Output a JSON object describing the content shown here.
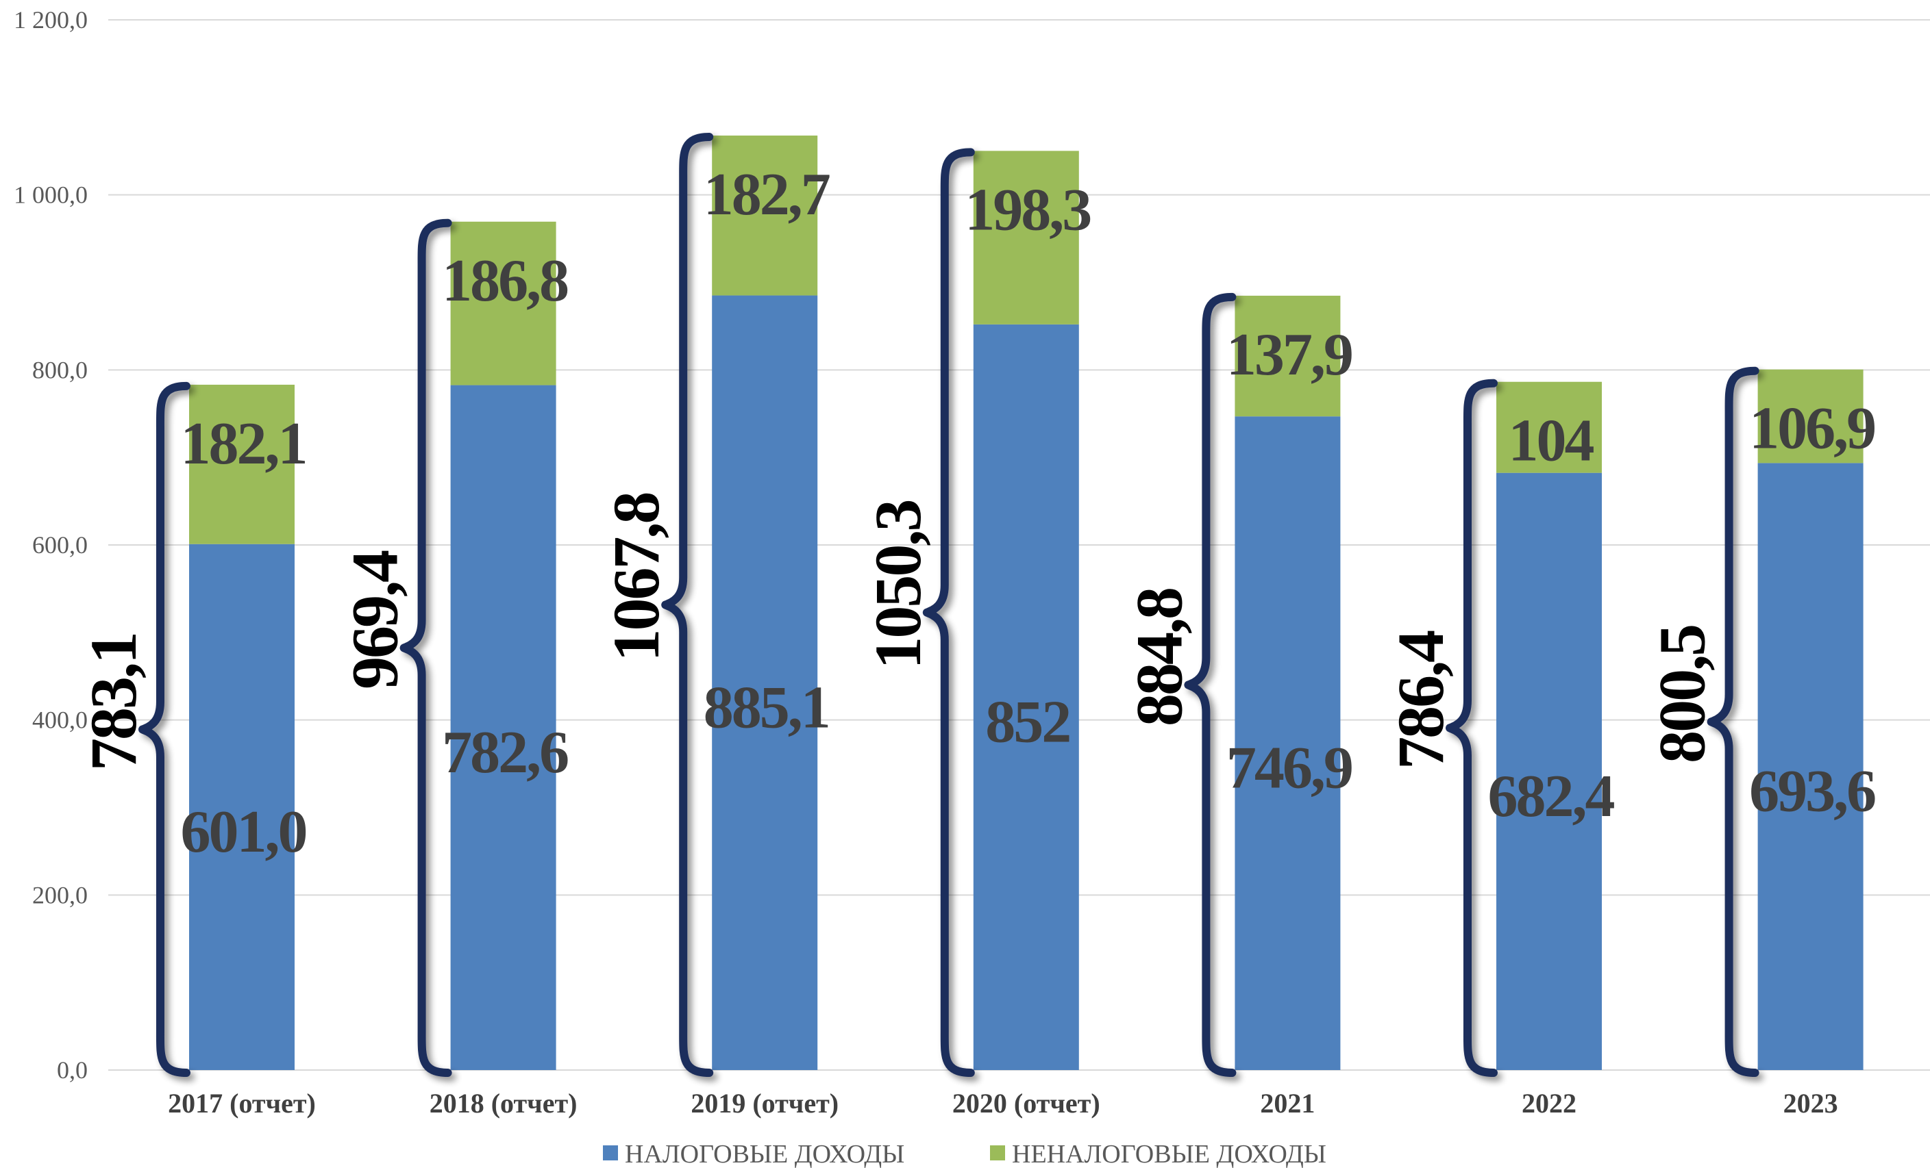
{
  "chart_data": {
    "type": "bar",
    "stacked": true,
    "categories": [
      "2017 (отчет)",
      "2018 (отчет)",
      "2019 (отчет)",
      "2020 (отчет)",
      "2021",
      "2022",
      "2023"
    ],
    "series": [
      {
        "name": "НАЛОГОВЫЕ ДОХОДЫ",
        "color": "#4F81BD",
        "values": [
          601.0,
          782.6,
          885.1,
          852,
          746.9,
          682.4,
          693.6
        ],
        "labels": [
          "601,0",
          "782,6",
          "885,1",
          "852",
          "746,9",
          "682,4",
          "693,6"
        ]
      },
      {
        "name": "НЕНАЛОГОВЫЕ ДОХОДЫ",
        "color": "#9BBB59",
        "values": [
          182.1,
          186.8,
          182.7,
          198.3,
          137.9,
          104,
          106.9
        ],
        "labels": [
          "182,1",
          "186,8",
          "182,7",
          "198,3",
          "137,9",
          "104",
          "106,9"
        ]
      }
    ],
    "totals": [
      783.1,
      969.4,
      1067.8,
      1050.3,
      884.8,
      786.4,
      800.5
    ],
    "total_labels": [
      "783,1",
      "969,4",
      "1067,8",
      "1050,3",
      "884,8",
      "786,4",
      "800,5"
    ],
    "brace_color": "#1F2D5C",
    "ylim": [
      0,
      1200
    ],
    "yticks": [
      0,
      200,
      400,
      600,
      800,
      1000,
      1200
    ],
    "ytick_labels": [
      "0,0",
      "200,0",
      "400,0",
      "600,0",
      "800,0",
      "1 000,0",
      "1 200,0"
    ],
    "grid": true,
    "legend": "bottom",
    "title": "",
    "xlabel": "",
    "ylabel": ""
  }
}
